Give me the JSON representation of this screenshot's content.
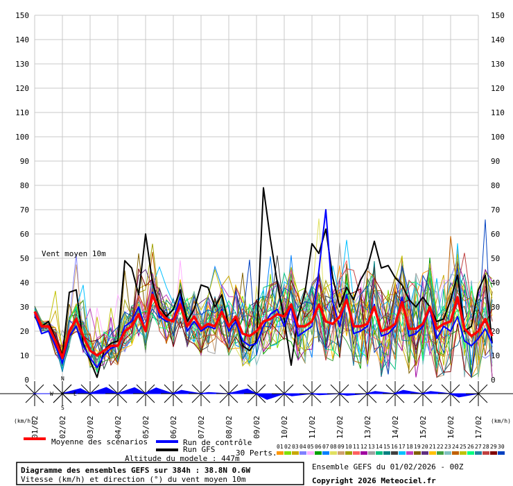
{
  "chart_data": {
    "type": "line",
    "ylim": [
      0,
      150
    ],
    "y_ticks": [
      0,
      10,
      20,
      30,
      40,
      50,
      60,
      70,
      80,
      90,
      100,
      110,
      120,
      130,
      140,
      150
    ],
    "x_ticks": [
      "01/02",
      "02/02",
      "03/02",
      "04/02",
      "05/02",
      "06/02",
      "07/02",
      "08/02",
      "09/02",
      "10/02",
      "11/02",
      "12/02",
      "13/02",
      "14/02",
      "15/02",
      "16/02",
      "17/02"
    ],
    "unit_label": "(km/h)",
    "annotation": "Vent moyen 10m",
    "grid": true,
    "step_hours": 6,
    "series": [
      {
        "name": "Moyenne des scénarios",
        "color": "#ff0000",
        "width": 3.5,
        "values": [
          28,
          22,
          22,
          16,
          9,
          20,
          25,
          18,
          12,
          10,
          12,
          14,
          14,
          20,
          22,
          27,
          20,
          35,
          28,
          25,
          24,
          31,
          22,
          26,
          21,
          23,
          22,
          28,
          22,
          26,
          19,
          18,
          20,
          24,
          25,
          27,
          26,
          31,
          22,
          22,
          24,
          31,
          24,
          23,
          26,
          33,
          22,
          22,
          23,
          30,
          20,
          21,
          23,
          32,
          21,
          21,
          23,
          30,
          21,
          23,
          24,
          34,
          21,
          18,
          20,
          25,
          18
        ]
      },
      {
        "name": "Run de contrôle",
        "color": "#0000ff",
        "width": 2,
        "values": [
          27,
          19,
          20,
          14,
          7,
          18,
          22,
          14,
          9,
          5,
          10,
          13,
          14,
          22,
          24,
          30,
          20,
          36,
          26,
          24,
          25,
          34,
          20,
          24,
          20,
          22,
          21,
          29,
          20,
          24,
          16,
          14,
          15,
          22,
          27,
          29,
          22,
          30,
          18,
          20,
          22,
          45,
          70,
          32,
          22,
          35,
          19,
          20,
          22,
          31,
          18,
          19,
          22,
          34,
          18,
          19,
          22,
          29,
          17,
          22,
          20,
          26,
          16,
          14,
          17,
          21,
          15
        ]
      },
      {
        "name": "Run GFS",
        "color": "#000000",
        "width": 2,
        "values": [
          26,
          22,
          24,
          17,
          10,
          36,
          37,
          15,
          8,
          1,
          12,
          15,
          16,
          49,
          46,
          35,
          60,
          40,
          30,
          26,
          29,
          37,
          24,
          29,
          39,
          38,
          30,
          35,
          22,
          25,
          14,
          12,
          16,
          79,
          58,
          40,
          25,
          6,
          26,
          36,
          56,
          52,
          62,
          42,
          30,
          38,
          33,
          41,
          46,
          57,
          46,
          47,
          42,
          39,
          33,
          30,
          34,
          30,
          24,
          25,
          33,
          43,
          20,
          22,
          37,
          43,
          15
        ]
      }
    ],
    "perturbations_label": "30 Perts.",
    "perturbations": [
      {
        "name": "01",
        "color": "#ff9600"
      },
      {
        "name": "02",
        "color": "#80e000"
      },
      {
        "name": "03",
        "color": "#c8a800"
      },
      {
        "name": "04",
        "color": "#8080ff"
      },
      {
        "name": "05",
        "color": "#ffb0ff"
      },
      {
        "name": "06",
        "color": "#00a000"
      },
      {
        "name": "07",
        "color": "#0080ff"
      },
      {
        "name": "08",
        "color": "#e0e060"
      },
      {
        "name": "09",
        "color": "#d0a070"
      },
      {
        "name": "10",
        "color": "#a0a000"
      },
      {
        "name": "11",
        "color": "#ff6060"
      },
      {
        "name": "12",
        "color": "#a000a0"
      },
      {
        "name": "13",
        "color": "#a0a0a0"
      },
      {
        "name": "14",
        "color": "#00c080"
      },
      {
        "name": "15",
        "color": "#008080"
      },
      {
        "name": "16",
        "color": "#404040"
      },
      {
        "name": "17",
        "color": "#00c0ff"
      },
      {
        "name": "18",
        "color": "#c040c0"
      },
      {
        "name": "19",
        "color": "#806000"
      },
      {
        "name": "20",
        "color": "#603080"
      },
      {
        "name": "21",
        "color": "#ffc000"
      },
      {
        "name": "22",
        "color": "#40a040"
      },
      {
        "name": "23",
        "color": "#80c0c0"
      },
      {
        "name": "24",
        "color": "#c06000"
      },
      {
        "name": "25",
        "color": "#c0c000"
      },
      {
        "name": "26",
        "color": "#00ff80"
      },
      {
        "name": "27",
        "color": "#2080a0"
      },
      {
        "name": "28",
        "color": "#c04040"
      },
      {
        "name": "29",
        "color": "#800000"
      },
      {
        "name": "30",
        "color": "#0040c0"
      }
    ],
    "wind_directions": [
      {
        "day": "01/02",
        "direction": 270
      },
      {
        "day": "02/02",
        "direction": 40
      },
      {
        "day": "03/02",
        "direction": 20
      },
      {
        "day": "04/02",
        "direction": 25
      },
      {
        "day": "05/02",
        "direction": 330
      },
      {
        "day": "06/02",
        "direction": 300
      },
      {
        "day": "07/02",
        "direction": 280
      },
      {
        "day": "08/02",
        "direction": 45
      },
      {
        "day": "09/02",
        "direction": 210
      },
      {
        "day": "10/02",
        "direction": 250
      },
      {
        "day": "11/02",
        "direction": 260
      },
      {
        "day": "12/02",
        "direction": 255
      },
      {
        "day": "13/02",
        "direction": 290
      },
      {
        "day": "14/02",
        "direction": 300
      },
      {
        "day": "15/02",
        "direction": 290
      },
      {
        "day": "16/02",
        "direction": 240
      },
      {
        "day": "17/02",
        "direction": 220
      }
    ]
  },
  "compass": {
    "n": "N",
    "s": "S",
    "w": "W",
    "e": "E"
  },
  "altitude_text": "Altitude du modele : 447m",
  "info_box": {
    "title": "Diagramme des ensembles GEFS sur 384h : 38.8N 0.6W",
    "subtitle": "Vitesse (km/h) et direction (°) du vent moyen 10m"
  },
  "run_info": "Ensemble GEFS du 01/02/2026 - 00Z",
  "copyright": "Copyright 2026 Meteociel.fr"
}
